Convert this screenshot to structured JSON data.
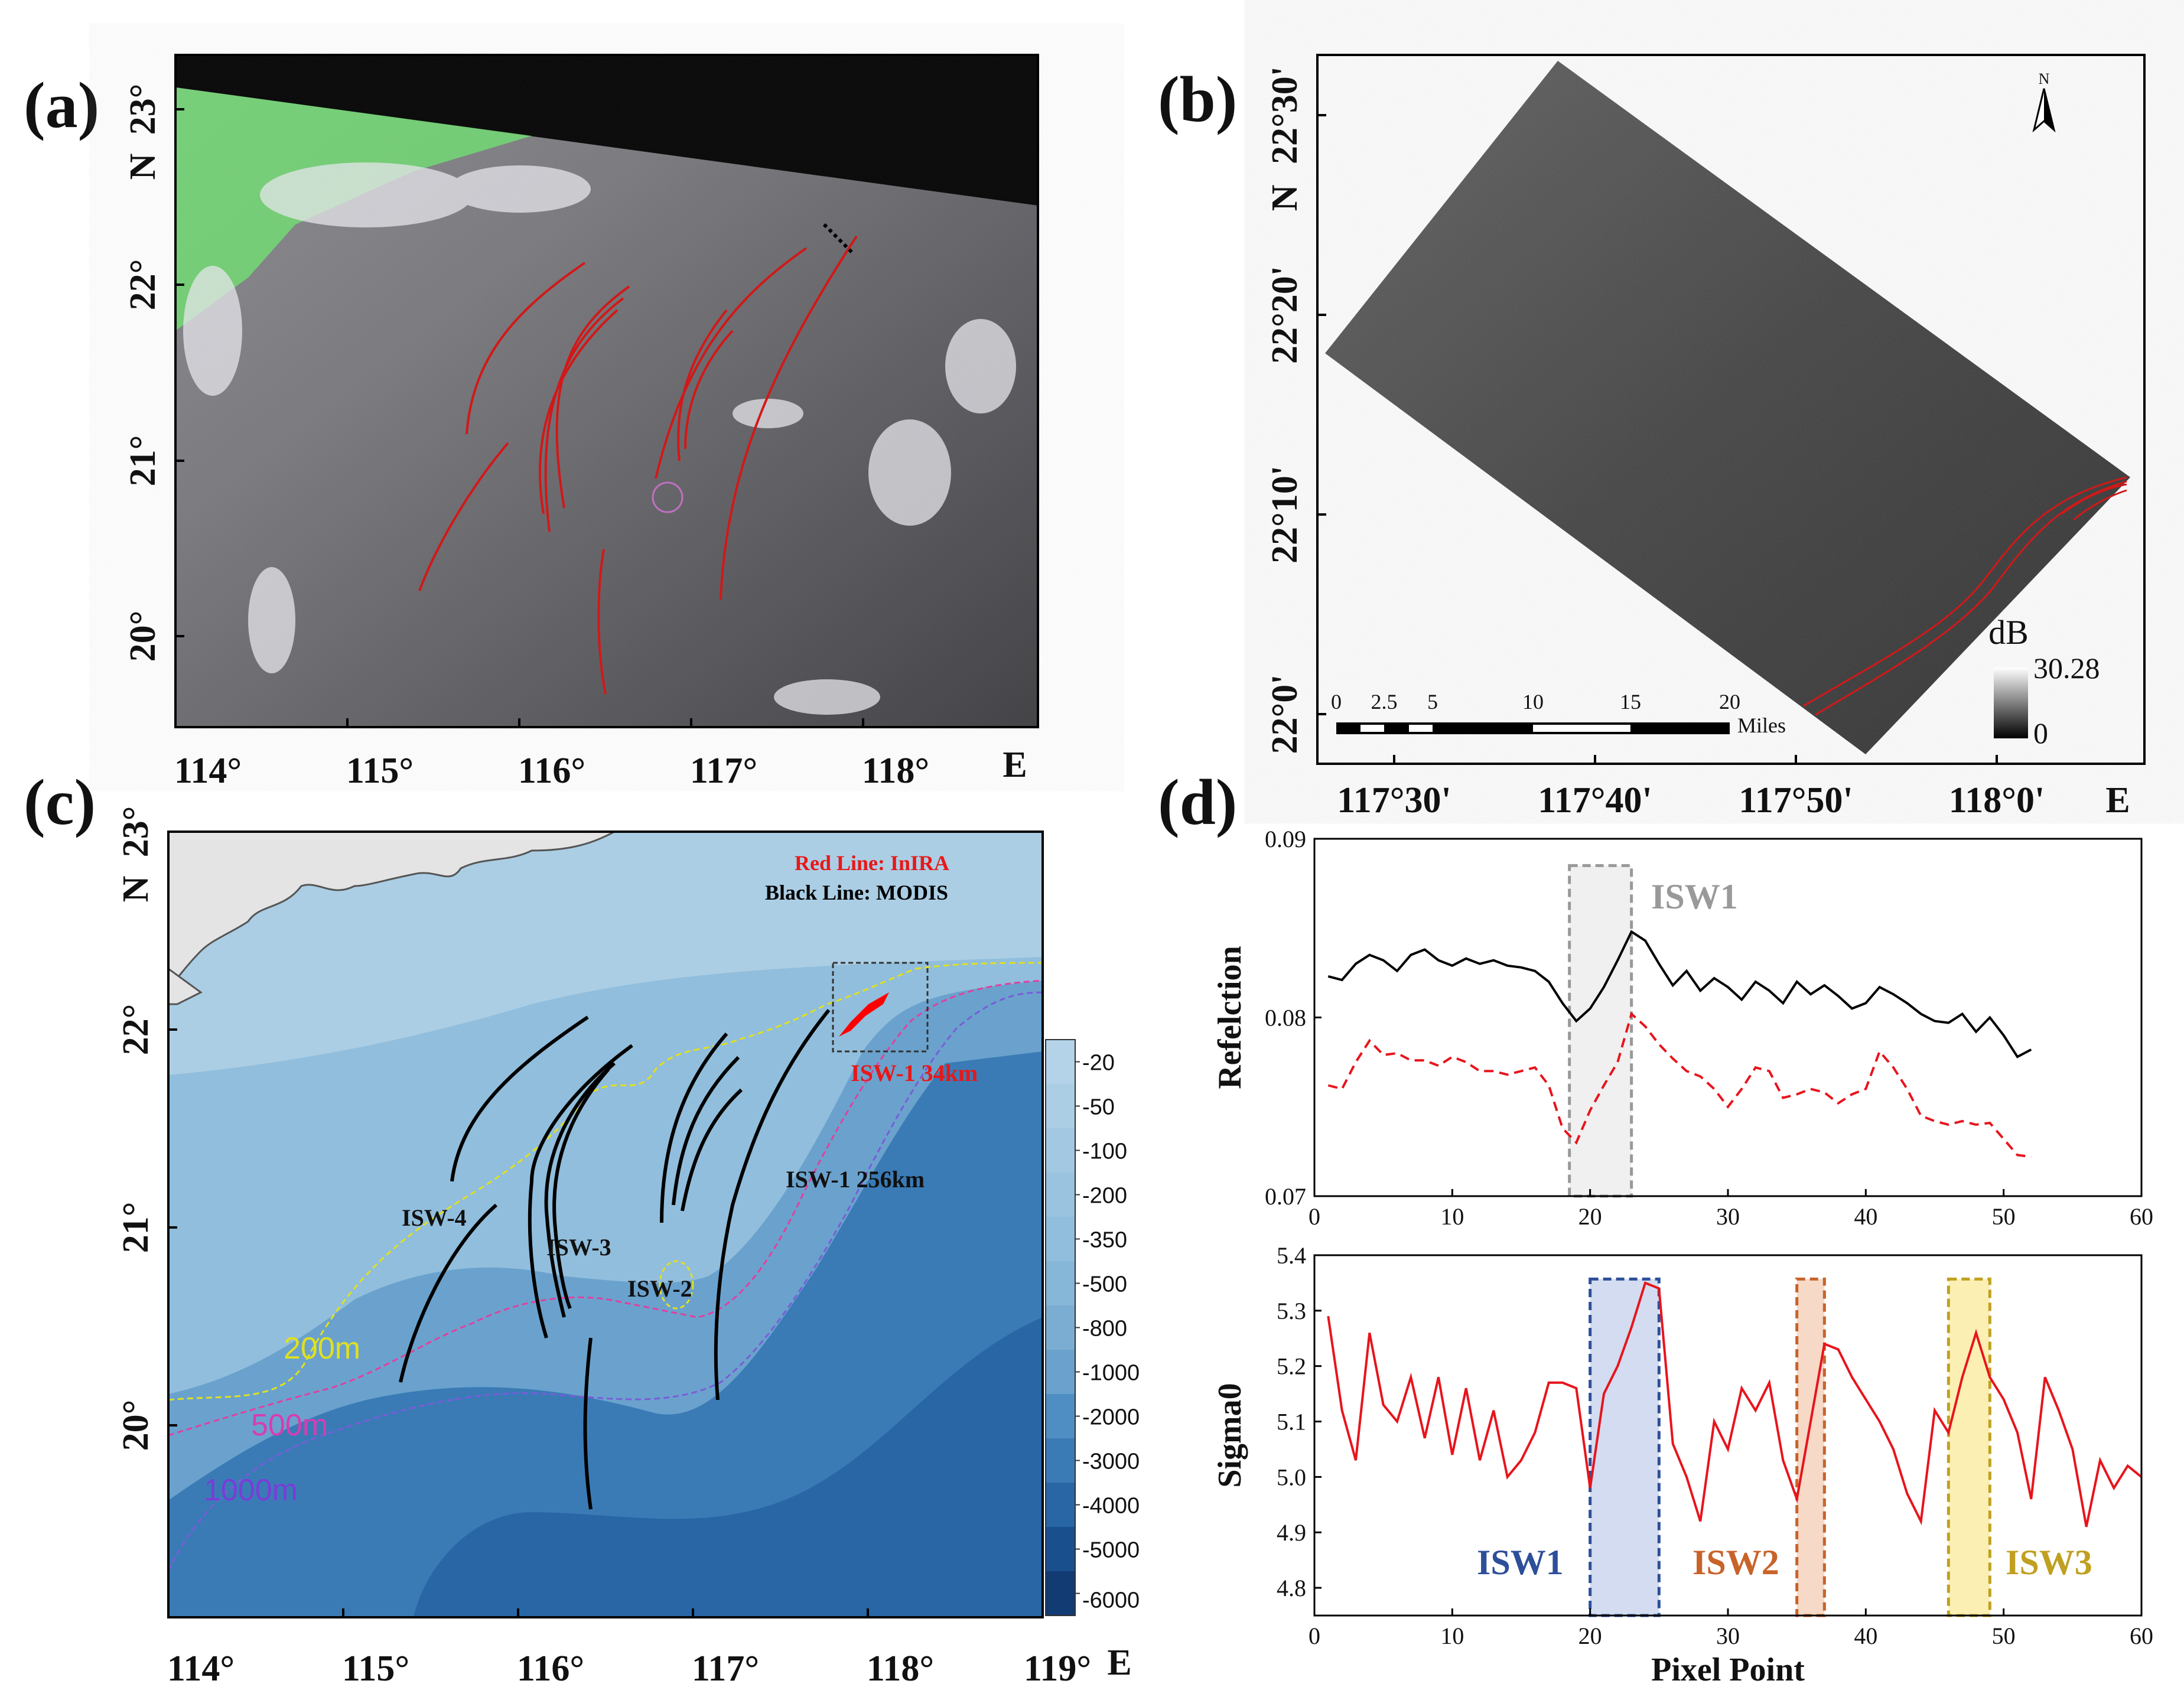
{
  "figure": {
    "panel_labels": [
      "(a)",
      "(b)",
      "(c)",
      "(d)"
    ]
  },
  "panel_a": {
    "label": "(a)",
    "x_ticks": [
      "114°",
      "115°",
      "116°",
      "117°",
      "118°"
    ],
    "x_unit": "E",
    "y_ticks": [
      "23°",
      "22°",
      "21°",
      "20°"
    ],
    "y_unit": "N"
  },
  "panel_b": {
    "label": "(b)",
    "x_ticks": [
      "117°30'",
      "117°40'",
      "117°50'",
      "118°0'"
    ],
    "x_unit": "E",
    "y_ticks": [
      "22°30'",
      "22°20'",
      "22°10'",
      "22°0'"
    ],
    "y_unit": "N",
    "north": "N",
    "scale_ticks": [
      "0",
      "2.5",
      "5",
      "10",
      "15",
      "20"
    ],
    "scale_unit": "Miles",
    "colorbar_title": "dB",
    "colorbar_max": "30.28",
    "colorbar_min": "0"
  },
  "panel_c": {
    "label": "(c)",
    "x_ticks": [
      "114°",
      "115°",
      "116°",
      "117°",
      "118°",
      "119°"
    ],
    "x_unit": "E",
    "y_ticks": [
      "23°",
      "22°",
      "21°",
      "20°"
    ],
    "y_unit": "N",
    "legend_red": "Red   Line: InIRA",
    "legend_black": "Black Line: MODIS",
    "isw_labels": [
      "ISW-4",
      "ISW-3",
      "ISW-2",
      "ISW-1  256km",
      "ISW-1  34km"
    ],
    "contour_labels": [
      "200m",
      "500m",
      "1000m"
    ],
    "colorbar_ticks": [
      "-20",
      "-50",
      "-100",
      "-200",
      "-350",
      "-500",
      "-800",
      "-1000",
      "-2000",
      "-3000",
      "-4000",
      "-5000",
      "-6000"
    ],
    "colorbar_colors": [
      "#b4d3e8",
      "#abcee5",
      "#a3c9e2",
      "#9ac3df",
      "#91bedc",
      "#86b6d8",
      "#7badd3",
      "#6aa2cd",
      "#4f8ec3",
      "#3a7bb6",
      "#2866a6",
      "#1a4f8e",
      "#123a73"
    ]
  },
  "chart_data": [
    {
      "type": "line",
      "title": "",
      "xlabel": "",
      "ylabel": "Refelction",
      "xlim": [
        0,
        60
      ],
      "ylim": [
        0.07,
        0.09
      ],
      "x_ticks": [
        "0",
        "10",
        "20",
        "30",
        "40",
        "50",
        "60"
      ],
      "y_ticks": [
        "0.07",
        "0.08",
        "0.09"
      ],
      "series": [
        {
          "name": "black",
          "color": "#000000",
          "dashed": false,
          "x": [
            1,
            2,
            3,
            4,
            5,
            6,
            7,
            8,
            9,
            10,
            11,
            12,
            13,
            14,
            15,
            16,
            17,
            18,
            19,
            20,
            21,
            22,
            23,
            24,
            25,
            26,
            27,
            28,
            29,
            30,
            31,
            32,
            33,
            34,
            35,
            36,
            37,
            38,
            39,
            40,
            41,
            42,
            43,
            44,
            45,
            46,
            47,
            48,
            49,
            50,
            51,
            52
          ],
          "values": [
            0.0823,
            0.0821,
            0.083,
            0.0835,
            0.0832,
            0.0826,
            0.0835,
            0.0838,
            0.0832,
            0.0829,
            0.0833,
            0.083,
            0.0832,
            0.0829,
            0.0828,
            0.0826,
            0.082,
            0.0808,
            0.0798,
            0.0805,
            0.0817,
            0.0832,
            0.0848,
            0.0843,
            0.083,
            0.0818,
            0.0826,
            0.0815,
            0.0822,
            0.0817,
            0.081,
            0.082,
            0.0815,
            0.0808,
            0.082,
            0.0813,
            0.0818,
            0.0812,
            0.0805,
            0.0808,
            0.0817,
            0.0813,
            0.0808,
            0.0802,
            0.0798,
            0.0797,
            0.0802,
            0.0792,
            0.08,
            0.079,
            0.0778,
            0.0782
          ]
        },
        {
          "name": "red-dashed",
          "color": "#e8141c",
          "dashed": true,
          "x": [
            1,
            2,
            3,
            4,
            5,
            6,
            7,
            8,
            9,
            10,
            11,
            12,
            13,
            14,
            15,
            16,
            17,
            18,
            19,
            20,
            21,
            22,
            23,
            24,
            25,
            26,
            27,
            28,
            29,
            30,
            31,
            32,
            33,
            34,
            35,
            36,
            37,
            38,
            39,
            40,
            41,
            42,
            43,
            44,
            45,
            46,
            47,
            48,
            49,
            50,
            51,
            52
          ],
          "values": [
            0.0762,
            0.076,
            0.0775,
            0.0787,
            0.0779,
            0.078,
            0.0776,
            0.0776,
            0.0773,
            0.0778,
            0.0775,
            0.077,
            0.077,
            0.0768,
            0.077,
            0.0772,
            0.0762,
            0.0738,
            0.073,
            0.0748,
            0.0762,
            0.0775,
            0.0802,
            0.0795,
            0.0785,
            0.0777,
            0.077,
            0.0767,
            0.076,
            0.075,
            0.076,
            0.0772,
            0.077,
            0.0755,
            0.0757,
            0.076,
            0.0758,
            0.0752,
            0.0757,
            0.076,
            0.0781,
            0.0772,
            0.076,
            0.0745,
            0.0742,
            0.074,
            0.0742,
            0.074,
            0.0741,
            0.0732,
            0.0723,
            0.0722
          ]
        }
      ],
      "highlights": [
        {
          "label": "ISW1",
          "x0": 18.5,
          "x1": 23,
          "color": "#999999"
        }
      ]
    },
    {
      "type": "line",
      "title": "",
      "xlabel": "Pixel Point",
      "ylabel": "Sigma0",
      "xlim": [
        0,
        60
      ],
      "ylim": [
        4.75,
        5.4
      ],
      "x_ticks": [
        "0",
        "10",
        "20",
        "30",
        "40",
        "50",
        "60"
      ],
      "y_ticks": [
        "4.8",
        "4.9",
        "5.0",
        "5.1",
        "5.2",
        "5.3",
        "5.4"
      ],
      "series": [
        {
          "name": "sigma0",
          "color": "#e8141c",
          "dashed": false,
          "x": [
            1,
            2,
            3,
            4,
            5,
            6,
            7,
            8,
            9,
            10,
            11,
            12,
            13,
            14,
            15,
            16,
            17,
            18,
            19,
            20,
            21,
            22,
            23,
            24,
            25,
            26,
            27,
            28,
            29,
            30,
            31,
            32,
            33,
            34,
            35,
            36,
            37,
            38,
            39,
            40,
            41,
            42,
            43,
            44,
            45,
            46,
            47,
            48,
            49,
            50,
            51,
            52,
            53,
            54,
            55,
            56,
            57,
            58,
            59,
            60
          ],
          "values": [
            5.29,
            5.12,
            5.03,
            5.26,
            5.13,
            5.1,
            5.18,
            5.07,
            5.18,
            5.04,
            5.16,
            5.03,
            5.12,
            5.0,
            5.03,
            5.08,
            5.17,
            5.17,
            5.16,
            4.98,
            5.15,
            5.2,
            5.27,
            5.35,
            5.34,
            5.06,
            5.0,
            4.92,
            5.1,
            5.05,
            5.16,
            5.12,
            5.17,
            5.03,
            4.96,
            5.1,
            5.24,
            5.23,
            5.18,
            5.14,
            5.1,
            5.05,
            4.97,
            4.92,
            5.12,
            5.08,
            5.18,
            5.26,
            5.18,
            5.14,
            5.08,
            4.96,
            5.18,
            5.12,
            5.05,
            4.91,
            5.03,
            4.98,
            5.02,
            5.0
          ]
        }
      ],
      "highlights": [
        {
          "label": "ISW1",
          "x0": 20,
          "x1": 25,
          "color": "#2d4f9a",
          "fill": "#d3dcf0"
        },
        {
          "label": "ISW2",
          "x0": 35,
          "x1": 37,
          "color": "#c8632a",
          "fill": "#f6d9c6"
        },
        {
          "label": "ISW3",
          "x0": 46,
          "x1": 49,
          "color": "#c0a020",
          "fill": "#fbefb3"
        }
      ]
    }
  ]
}
